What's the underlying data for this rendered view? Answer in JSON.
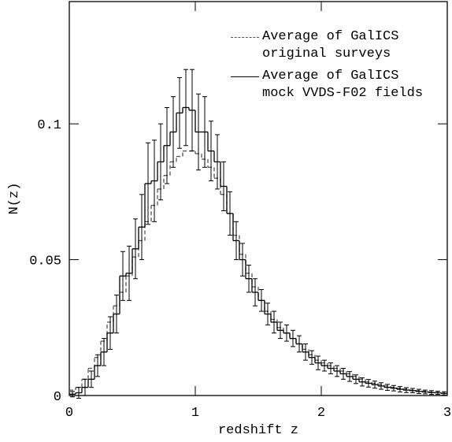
{
  "chart_data": {
    "type": "step_histogram",
    "xlabel": "redshift z",
    "ylabel": "N(z)",
    "xlim": [
      0,
      3
    ],
    "ylim": [
      0,
      0.145
    ],
    "xticks": [
      0,
      1,
      2,
      3
    ],
    "yticks": [
      0,
      0.05,
      0.1
    ],
    "bins": [
      0,
      0.05,
      0.1,
      0.15,
      0.2,
      0.25,
      0.3,
      0.35,
      0.4,
      0.45,
      0.5,
      0.55,
      0.6,
      0.65,
      0.7,
      0.75,
      0.8,
      0.85,
      0.9,
      0.95,
      1,
      1.05,
      1.1,
      1.15,
      1.2,
      1.25,
      1.3,
      1.35,
      1.4,
      1.45,
      1.5,
      1.55,
      1.6,
      1.65,
      1.7,
      1.75,
      1.8,
      1.85,
      1.9,
      1.95,
      2,
      2.05,
      2.1,
      2.15,
      2.2,
      2.25,
      2.3,
      2.35,
      2.4,
      2.45,
      2.5,
      2.55,
      2.6,
      2.65,
      2.7,
      2.75,
      2.8,
      2.85,
      2.9,
      2.95,
      3
    ],
    "series": [
      {
        "name": "Average of GalICS original surveys",
        "color": "#555555",
        "dash": true,
        "values": [
          0.002,
          0.003,
          0.006,
          0.01,
          0.014,
          0.02,
          0.027,
          0.033,
          0.038,
          0.044,
          0.051,
          0.057,
          0.064,
          0.07,
          0.076,
          0.081,
          0.086,
          0.088,
          0.09,
          0.09,
          0.089,
          0.087,
          0.084,
          0.08,
          0.074,
          0.067,
          0.059,
          0.052,
          0.045,
          0.04,
          0.035,
          0.031,
          0.028,
          0.025,
          0.023,
          0.021,
          0.019,
          0.017,
          0.015,
          0.013,
          0.012,
          0.011,
          0.01,
          0.009,
          0.008,
          0.007,
          0.006,
          0.005,
          0.0045,
          0.004,
          0.0035,
          0.003,
          0.0027,
          0.0024,
          0.002,
          0.0018,
          0.0016,
          0.0013,
          0.0011,
          0.0009
        ]
      },
      {
        "name": "Average of GalICS mock VVDS-F02 fields",
        "color": "#000000",
        "dash": false,
        "values": [
          0.0005,
          0.001,
          0.003,
          0.006,
          0.011,
          0.016,
          0.023,
          0.03,
          0.044,
          0.045,
          0.054,
          0.062,
          0.078,
          0.079,
          0.086,
          0.092,
          0.097,
          0.104,
          0.106,
          0.105,
          0.097,
          0.097,
          0.09,
          0.086,
          0.077,
          0.067,
          0.057,
          0.05,
          0.043,
          0.038,
          0.035,
          0.03,
          0.027,
          0.024,
          0.023,
          0.021,
          0.019,
          0.016,
          0.014,
          0.012,
          0.011,
          0.01,
          0.009,
          0.008,
          0.007,
          0.006,
          0.005,
          0.0045,
          0.004,
          0.0035,
          0.003,
          0.0027,
          0.0023,
          0.002,
          0.0018,
          0.0015,
          0.0013,
          0.0011,
          0.001,
          0.0008
        ],
        "errors": [
          0.001,
          0.002,
          0.003,
          0.003,
          0.004,
          0.005,
          0.006,
          0.007,
          0.009,
          0.01,
          0.011,
          0.012,
          0.015,
          0.015,
          0.014,
          0.014,
          0.013,
          0.013,
          0.014,
          0.015,
          0.014,
          0.013,
          0.011,
          0.01,
          0.009,
          0.008,
          0.007,
          0.006,
          0.005,
          0.005,
          0.004,
          0.004,
          0.004,
          0.003,
          0.003,
          0.003,
          0.003,
          0.003,
          0.0025,
          0.0025,
          0.002,
          0.002,
          0.002,
          0.002,
          0.0018,
          0.0016,
          0.0015,
          0.0014,
          0.0013,
          0.0012,
          0.0011,
          0.001,
          0.001,
          0.0009,
          0.0008,
          0.0008,
          0.0007,
          0.0007,
          0.0006,
          0.0006
        ]
      }
    ]
  }
}
